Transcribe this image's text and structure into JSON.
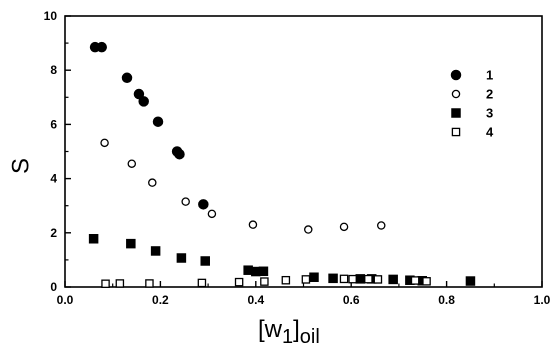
{
  "chart_data": {
    "type": "scatter",
    "title": "",
    "ylabel": "S",
    "xlabel_main": "[w",
    "xlabel_sub1": "1",
    "xlabel_close": "]",
    "xlabel_sub2": "oil",
    "xlim": [
      0,
      1.0
    ],
    "ylim": [
      0,
      10
    ],
    "xticks": [
      "0.0",
      "0.2",
      "0.4",
      "0.6",
      "0.8",
      "1.0"
    ],
    "yticks": [
      "0",
      "2",
      "4",
      "6",
      "8",
      "10"
    ],
    "legend_position": "top-right",
    "series": [
      {
        "name": "1",
        "marker": "filled-circle",
        "points": [
          [
            0.063,
            8.85
          ],
          [
            0.077,
            8.85
          ],
          [
            0.13,
            7.72
          ],
          [
            0.155,
            7.12
          ],
          [
            0.165,
            6.85
          ],
          [
            0.195,
            6.1
          ],
          [
            0.235,
            5.0
          ],
          [
            0.24,
            4.9
          ],
          [
            0.29,
            3.05
          ]
        ]
      },
      {
        "name": "2",
        "marker": "open-circle",
        "points": [
          [
            0.083,
            5.32
          ],
          [
            0.14,
            4.55
          ],
          [
            0.183,
            3.85
          ],
          [
            0.253,
            3.15
          ],
          [
            0.308,
            2.7
          ],
          [
            0.394,
            2.3
          ],
          [
            0.51,
            2.12
          ],
          [
            0.585,
            2.22
          ],
          [
            0.663,
            2.27
          ]
        ]
      },
      {
        "name": "3",
        "marker": "filled-square",
        "points": [
          [
            0.06,
            1.78
          ],
          [
            0.138,
            1.6
          ],
          [
            0.19,
            1.33
          ],
          [
            0.244,
            1.07
          ],
          [
            0.294,
            0.96
          ],
          [
            0.384,
            0.62
          ],
          [
            0.4,
            0.57
          ],
          [
            0.416,
            0.58
          ],
          [
            0.522,
            0.36
          ],
          [
            0.562,
            0.32
          ],
          [
            0.619,
            0.3
          ],
          [
            0.643,
            0.3
          ],
          [
            0.688,
            0.28
          ],
          [
            0.723,
            0.25
          ],
          [
            0.749,
            0.23
          ],
          [
            0.85,
            0.22
          ]
        ]
      },
      {
        "name": "4",
        "marker": "open-square",
        "points": [
          [
            0.085,
            0.12
          ],
          [
            0.115,
            0.13
          ],
          [
            0.177,
            0.13
          ],
          [
            0.287,
            0.15
          ],
          [
            0.365,
            0.18
          ],
          [
            0.418,
            0.2
          ],
          [
            0.463,
            0.25
          ],
          [
            0.505,
            0.28
          ],
          [
            0.585,
            0.3
          ],
          [
            0.603,
            0.29
          ],
          [
            0.636,
            0.29
          ],
          [
            0.656,
            0.28
          ],
          [
            0.734,
            0.24
          ],
          [
            0.758,
            0.21
          ]
        ]
      }
    ]
  }
}
